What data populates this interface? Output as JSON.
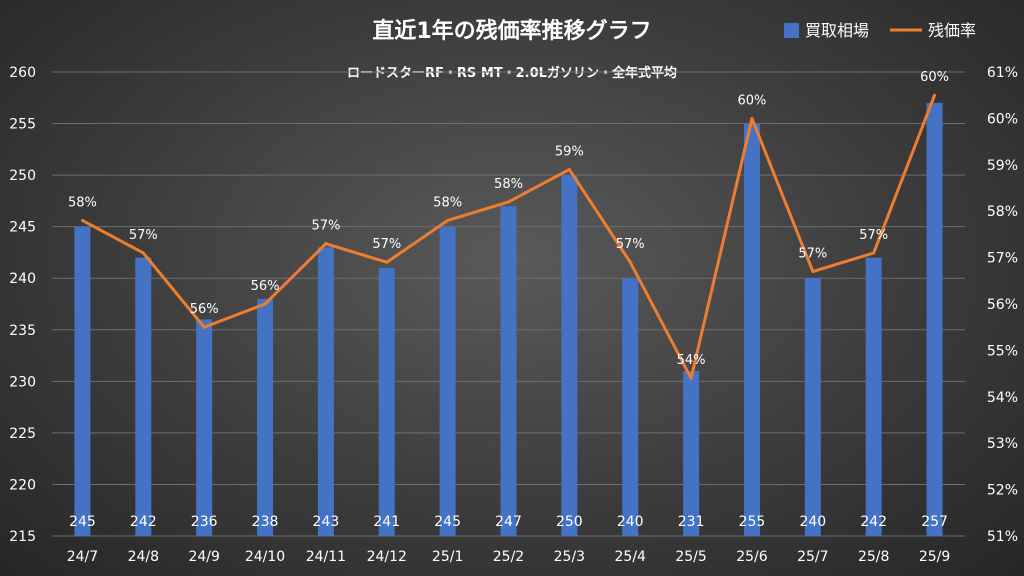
{
  "chart_data": {
    "type": "bar",
    "title": "直近1年の残価率推移グラフ",
    "subtitle": "ロードスターRF・RS MT・2.0Lガソリン・全年式平均",
    "categories": [
      "24/7",
      "24/8",
      "24/9",
      "24/10",
      "24/11",
      "24/12",
      "25/1",
      "25/2",
      "25/3",
      "25/4",
      "25/5",
      "25/6",
      "25/7",
      "25/8",
      "25/9"
    ],
    "series": [
      {
        "name": "買取相場",
        "type": "bar",
        "axis": "left",
        "color": "#4472c4",
        "values": [
          245,
          242,
          236,
          238,
          243,
          241,
          245,
          247,
          250,
          240,
          231,
          255,
          240,
          242,
          257
        ],
        "labels": [
          "245",
          "242",
          "236",
          "238",
          "243",
          "241",
          "245",
          "247",
          "250",
          "240",
          "231",
          "255",
          "240",
          "242",
          "257"
        ]
      },
      {
        "name": "残価率",
        "type": "line",
        "axis": "right",
        "color": "#ed7d31",
        "values": [
          57.8,
          57.1,
          55.5,
          56.0,
          57.3,
          56.9,
          57.8,
          58.2,
          58.9,
          56.9,
          54.4,
          60.0,
          56.7,
          57.1,
          60.5
        ],
        "labels": [
          "58%",
          "57%",
          "56%",
          "56%",
          "57%",
          "57%",
          "58%",
          "58%",
          "59%",
          "57%",
          "54%",
          "60%",
          "57%",
          "57%",
          "60%"
        ]
      }
    ],
    "y_left": {
      "min": 215,
      "max": 260,
      "ticks": [
        "215",
        "220",
        "225",
        "230",
        "235",
        "240",
        "245",
        "250",
        "255",
        "260"
      ]
    },
    "y_right": {
      "min": 51,
      "max": 61,
      "ticks": [
        "51%",
        "52%",
        "53%",
        "54%",
        "55%",
        "56%",
        "57%",
        "58%",
        "59%",
        "60%",
        "61%"
      ]
    },
    "legend": {
      "position": "top-right",
      "items": [
        "買取相場",
        "残価率"
      ]
    },
    "grid": true
  }
}
